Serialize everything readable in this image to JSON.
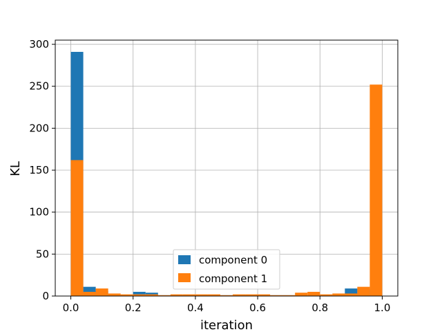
{
  "chart_data": {
    "type": "bar",
    "title": "",
    "xlabel": "iteration",
    "ylabel": "KL",
    "xlim": [
      -0.05,
      1.05
    ],
    "ylim": [
      0,
      305
    ],
    "grid": true,
    "legend_position": "bottom-center",
    "bin_width": 0.04,
    "bin_starts": [
      0.0,
      0.04,
      0.08,
      0.12,
      0.16,
      0.2,
      0.24,
      0.28,
      0.32,
      0.36,
      0.4,
      0.44,
      0.48,
      0.52,
      0.56,
      0.6,
      0.64,
      0.68,
      0.72,
      0.76,
      0.8,
      0.84,
      0.88,
      0.92,
      0.96
    ],
    "x_ticks": [
      {
        "value": 0.0,
        "label": "0.0"
      },
      {
        "value": 0.2,
        "label": "0.2"
      },
      {
        "value": 0.4,
        "label": "0.4"
      },
      {
        "value": 0.6,
        "label": "0.6"
      },
      {
        "value": 0.8,
        "label": "0.8"
      },
      {
        "value": 1.0,
        "label": "1.0"
      }
    ],
    "y_ticks": [
      {
        "value": 0,
        "label": "0"
      },
      {
        "value": 50,
        "label": "50"
      },
      {
        "value": 100,
        "label": "100"
      },
      {
        "value": 150,
        "label": "150"
      },
      {
        "value": 200,
        "label": "200"
      },
      {
        "value": 250,
        "label": "250"
      },
      {
        "value": 300,
        "label": "300"
      }
    ],
    "series": [
      {
        "name": "component 0",
        "color": "#1f77b4",
        "values": [
          291,
          11,
          6,
          2,
          1,
          5,
          4,
          1,
          1,
          1,
          1,
          1,
          1,
          1,
          1,
          1,
          1,
          1,
          0,
          1,
          1,
          2,
          9,
          8,
          3
        ]
      },
      {
        "name": "component 1",
        "color": "#ff7f0e",
        "values": [
          162,
          5,
          9,
          3,
          2,
          2,
          2,
          1,
          2,
          2,
          2,
          2,
          1,
          2,
          2,
          2,
          1,
          1,
          4,
          5,
          2,
          3,
          3,
          11,
          252
        ]
      }
    ]
  }
}
